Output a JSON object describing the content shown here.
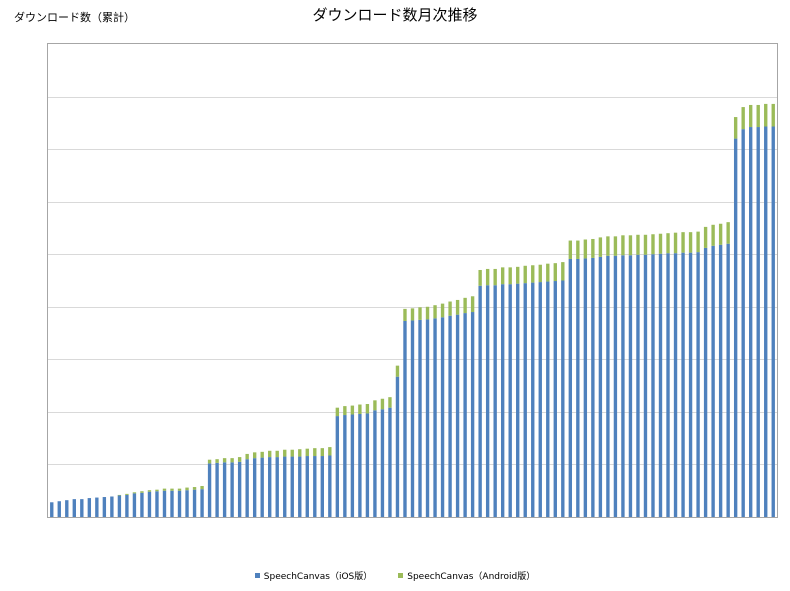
{
  "chart_data": {
    "type": "bar",
    "stacked": true,
    "title": "ダウンロード数月次推移",
    "ylabel": "ダウンロード数（累計）",
    "xlabel": "",
    "ylim": [
      0,
      900
    ],
    "grid": true,
    "legend_position": "bottom",
    "series": [
      {
        "name": "SpeechCanvas（iOS版）",
        "color": "#4f81bd",
        "values": [
          28,
          30,
          32,
          34,
          34,
          36,
          37,
          38,
          39,
          41,
          42,
          45,
          46,
          48,
          49,
          50,
          50,
          50,
          51,
          52,
          53,
          102,
          103,
          104,
          104,
          105,
          110,
          112,
          113,
          114,
          114,
          115,
          115,
          115,
          116,
          116,
          116,
          117,
          192,
          194,
          195,
          196,
          197,
          203,
          205,
          208,
          267,
          373,
          374,
          375,
          376,
          378,
          380,
          383,
          385,
          388,
          390,
          440,
          441,
          441,
          443,
          443,
          444,
          445,
          446,
          447,
          448,
          449,
          450,
          491,
          491,
          492,
          493,
          495,
          497,
          497,
          498,
          498,
          499,
          499,
          500,
          501,
          502,
          502,
          503,
          503,
          504,
          512,
          516,
          518,
          520,
          720,
          738,
          742,
          742,
          743,
          743
        ]
      },
      {
        "name": "SpeechCanvas（Android版）",
        "color": "#9bbb59",
        "values": [
          0,
          0,
          0,
          0,
          0,
          0,
          0,
          0,
          0,
          1,
          2,
          2,
          3,
          3,
          3,
          4,
          4,
          4,
          5,
          5,
          6,
          7,
          7,
          8,
          8,
          9,
          10,
          11,
          11,
          12,
          12,
          13,
          13,
          14,
          14,
          15,
          15,
          16,
          16,
          17,
          17,
          18,
          18,
          19,
          20,
          20,
          21,
          23,
          23,
          24,
          24,
          25,
          26,
          27,
          28,
          29,
          30,
          30,
          31,
          31,
          32,
          32,
          32,
          33,
          33,
          33,
          34,
          34,
          35,
          35,
          35,
          36,
          36,
          37,
          37,
          37,
          38,
          38,
          38,
          38,
          38,
          38,
          38,
          39,
          39,
          39,
          39,
          40,
          40,
          40,
          41,
          41,
          42,
          42,
          42,
          43,
          43
        ]
      }
    ]
  }
}
